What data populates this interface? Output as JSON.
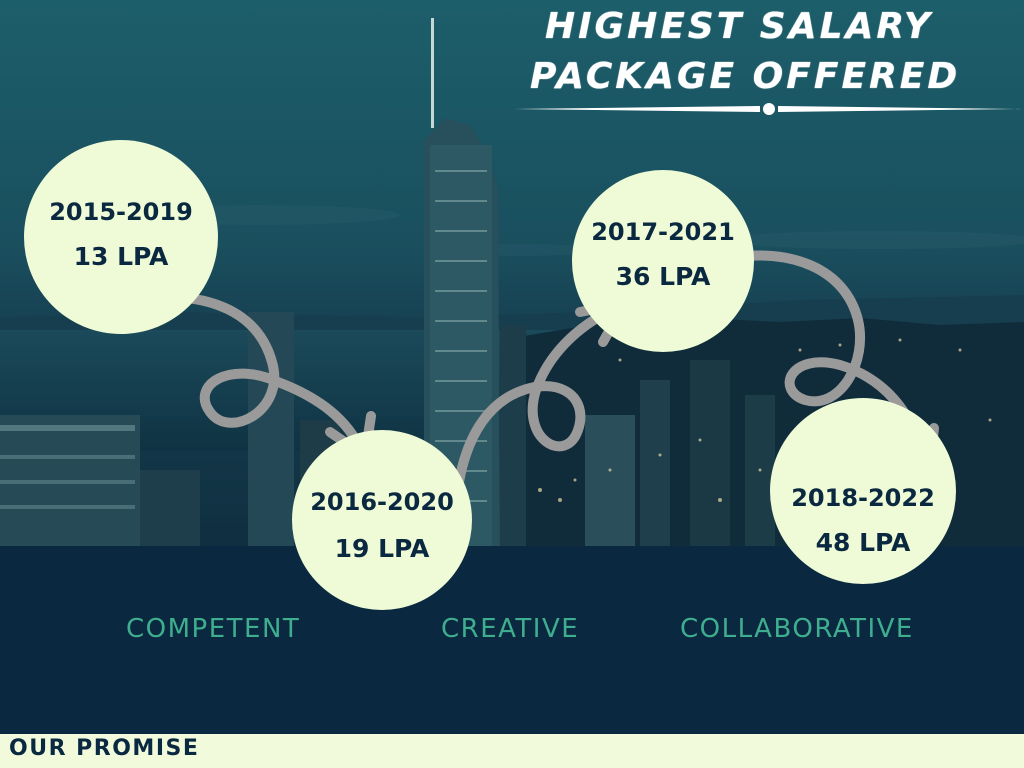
{
  "title": {
    "line1": "HIGHEST SALARY",
    "line2": "PACKAGE OFFERED"
  },
  "milestones": [
    {
      "years": "2015-2019",
      "package": "13 LPA"
    },
    {
      "years": "2016-2020",
      "package": "19 LPA"
    },
    {
      "years": "2017-2021",
      "package": "36 LPA"
    },
    {
      "years": "2018-2022",
      "package": "48 LPA"
    }
  ],
  "values": [
    "COMPETENT",
    "CREATIVE",
    "COLLABORATIVE"
  ],
  "footer": {
    "label": "OUR PROMISE"
  },
  "colors": {
    "background_dark": "#0a2840",
    "circle_fill": "#eefbd6",
    "circle_text": "#0a2840",
    "value_text": "#3fae8e",
    "arrow": "#9a9a9a",
    "footer_bar": "#f1fbdc"
  }
}
